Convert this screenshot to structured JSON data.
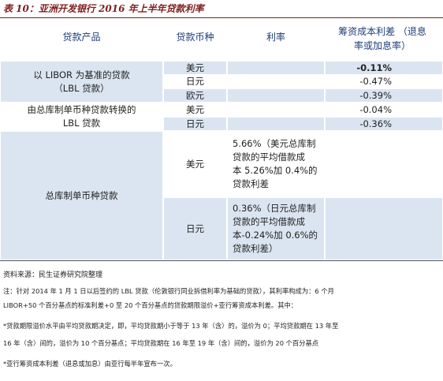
{
  "title": "表 10：亚洲开发银行 2016 年上半年贷款利率",
  "table": {
    "header": [
      "贷款产品",
      "贷款币种",
      "利率",
      "筹资成本利差 （退息率或加息率）"
    ],
    "groups": [
      {
        "product": [
          "以 LIBOR 为基准的贷款",
          "（LBL 贷款）"
        ],
        "rows": [
          {
            "currency": "美元",
            "spread": "-0.11%"
          },
          {
            "currency": "日元",
            "spread": "-0.47%"
          },
          {
            "currency": "欧元",
            "spread": "-0.39%"
          }
        ]
      },
      {
        "product": [
          "由总库制单币种贷款转换的",
          "LBL 贷款"
        ],
        "rows": [
          {
            "currency": "美元",
            "spread": "-0.04%"
          },
          {
            "currency": "日元",
            "spread": "-0.36%"
          }
        ]
      },
      {
        "product": [
          "总库制单币种贷款"
        ],
        "rows": [
          {
            "currency": "美元",
            "rate": [
              "5.66%（美元总库制",
              "贷款的平均借款成",
              "本 5.26%加 0.4%的",
              "贷款利差"
            ]
          },
          {
            "currency": "日元",
            "rate": [
              "0.36%（日元总库制",
              "贷款的平均借款成",
              "本-0.24%加 0.6%的",
              "贷款利差）"
            ]
          }
        ]
      }
    ]
  },
  "source": "资料来源：民生证券研究院整理",
  "notes": [
    "注：针对 2014 年 1 月 1 日以后签约的 LBL 贷款（伦敦银行同业拆借利率为基础的贷款），其利率构成为：6 个月",
    "LIBOR+50 个百分基点的标准利差+0 至 20 个百分基点的贷款期限溢价+亚行筹资成本利差。其中：",
    "*贷款期限溢价水平由平均贷款期决定，即，平均贷款期小于等于 13 年（含）的，溢价为 0；平均贷款期在 13 年至",
    "16 年（含）间的，溢价为 10 个百分基点；平均贷款期在 16 年至 19 年（含）间的，溢价为 20 个百分基点",
    "*亚行筹资成本利差（退息或加息）由亚行每半年宣布一次。"
  ]
}
